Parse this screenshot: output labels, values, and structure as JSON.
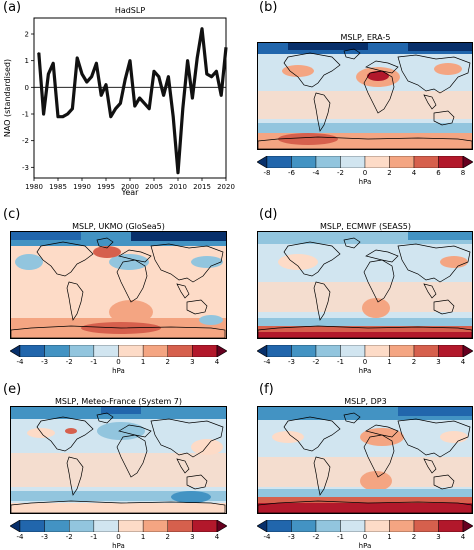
{
  "panels": {
    "a": {
      "label": "(a)",
      "title": "HadSLP"
    },
    "b": {
      "label": "(b)",
      "title": "MSLP, ERA-5"
    },
    "c": {
      "label": "(c)",
      "title": "MSLP, UKMO (GloSea5)"
    },
    "d": {
      "label": "(d)",
      "title": "MSLP, ECMWF (SEAS5)"
    },
    "e": {
      "label": "(e)",
      "title": "MSLP, Meteo-France (System 7)"
    },
    "f": {
      "label": "(f)",
      "title": "MSLP, DP3"
    }
  },
  "colorbars": {
    "unit": "hPa",
    "wide": [
      "-8",
      "-6",
      "-4",
      "-2",
      "0",
      "2",
      "4",
      "6",
      "8"
    ],
    "narrow": [
      "-4",
      "-3",
      "-2",
      "-1",
      "0",
      "1",
      "2",
      "3",
      "4"
    ],
    "colors": [
      "#08306b",
      "#2166ac",
      "#4393c3",
      "#92c5de",
      "#d1e5f0",
      "#fddbc7",
      "#f4a582",
      "#d6604d",
      "#b2182b",
      "#67001f"
    ]
  },
  "chart_data": {
    "type": "line",
    "title": "HadSLP",
    "xlabel": "Year",
    "ylabel": "NAO (standardised)",
    "xlim": [
      1980,
      2020
    ],
    "ylim": [
      -3.4,
      2.6
    ],
    "xticks": [
      "1980",
      "1985",
      "1990",
      "1995",
      "2000",
      "2005",
      "2010",
      "2015",
      "2020"
    ],
    "yticks": [
      "-3",
      "-2",
      "-1",
      "0",
      "1",
      "2"
    ],
    "x": [
      1981,
      1982,
      1983,
      1984,
      1985,
      1986,
      1987,
      1988,
      1989,
      1990,
      1991,
      1992,
      1993,
      1994,
      1995,
      1996,
      1997,
      1998,
      1999,
      2000,
      2001,
      2002,
      2003,
      2004,
      2005,
      2006,
      2007,
      2008,
      2009,
      2010,
      2011,
      2012,
      2013,
      2014,
      2015,
      2016,
      2017,
      2018,
      2019,
      2020
    ],
    "series": [
      {
        "values": [
          1.3,
          -1.0,
          0.5,
          0.9,
          -1.1,
          -1.1,
          -1.0,
          -0.8,
          1.1,
          0.5,
          0.2,
          0.4,
          0.9,
          -0.3,
          0.1,
          -1.1,
          -0.8,
          -0.6,
          0.3,
          1.0,
          -0.7,
          -0.4,
          -0.6,
          -0.8,
          0.6,
          0.4,
          -0.3,
          0.4,
          -1.1,
          -3.2,
          -0.8,
          1.0,
          -0.4,
          1.1,
          2.2,
          0.5,
          0.4,
          0.6,
          -0.3,
          1.5
        ]
      }
    ]
  }
}
